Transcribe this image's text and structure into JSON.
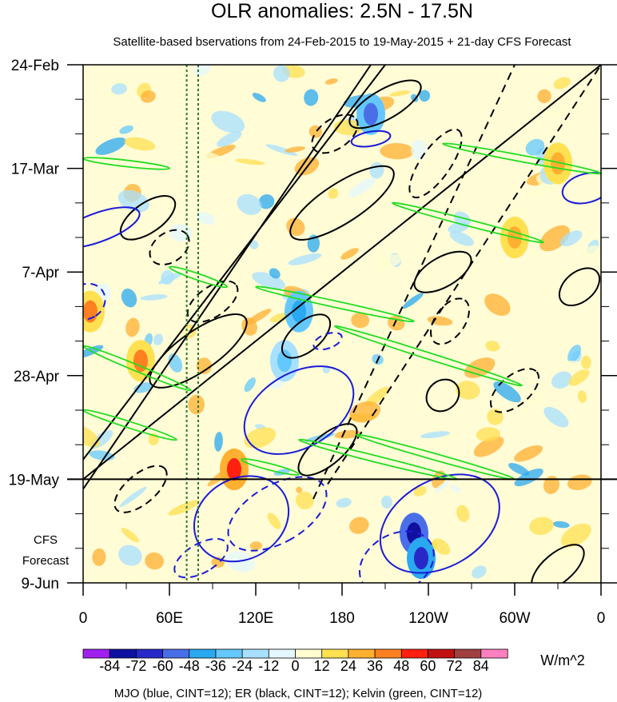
{
  "chart_data": {
    "type": "heatmap",
    "title": "OLR anomalies: 2.5N - 17.5N",
    "subtitle": "Satellite-based bservations from 24-Feb-2015 to 19-May-2015 + 21-day CFS Forecast",
    "y_ticks": [
      "24-Feb",
      "17-Mar",
      "7-Apr",
      "28-Apr",
      "19-May",
      "9-Jun"
    ],
    "y_tick_days": [
      0,
      21,
      42,
      63,
      84,
      105
    ],
    "forecast_start_day": 84,
    "forecast_label": [
      "CFS",
      "Forecast"
    ],
    "x_ticks": [
      "0",
      "60E",
      "120E",
      "180",
      "120W",
      "60W",
      "0"
    ],
    "x_tick_lon": [
      0,
      60,
      120,
      180,
      240,
      300,
      360
    ],
    "xlim": [
      0,
      360
    ],
    "ylim_days": [
      0,
      105
    ],
    "colorbar": {
      "label": "W/m^2",
      "tick_labels": [
        "-84",
        "-72",
        "-60",
        "-48",
        "-36",
        "-24",
        "-12",
        "0",
        "12",
        "24",
        "36",
        "48",
        "60",
        "72",
        "84"
      ],
      "levels": [
        -84,
        -72,
        -60,
        -48,
        -36,
        -24,
        -12,
        0,
        12,
        24,
        36,
        48,
        60,
        72,
        84
      ],
      "colors": [
        "#a020f0",
        "#1010a0",
        "#2828c8",
        "#4a6ee8",
        "#2aa8f0",
        "#64c8ff",
        "#a8e0ff",
        "#e4f8ff",
        "#fffdd0",
        "#ffe050",
        "#ffb030",
        "#ff8020",
        "#ff2010",
        "#c01010",
        "#a04040",
        "#ff80c0"
      ]
    },
    "reference_lon_lines": [
      72,
      80
    ],
    "contour_legend": "MJO (blue, CINT=12); ER (black, CINT=12); Kelvin (green, CINT=12)",
    "series_colors": {
      "MJO": "#1a1ad8",
      "ER": "#000000",
      "Kelvin": "#22dd22"
    },
    "anomaly_features": [
      {
        "lon": 200,
        "day": 10,
        "value": -60
      },
      {
        "lon": 230,
        "day": 95,
        "value": -84
      },
      {
        "lon": 235,
        "day": 100,
        "value": -72
      },
      {
        "lon": 150,
        "day": 50,
        "value": -48
      },
      {
        "lon": 105,
        "day": 82,
        "value": 48
      },
      {
        "lon": 40,
        "day": 60,
        "value": 36
      },
      {
        "lon": 300,
        "day": 35,
        "value": 24
      },
      {
        "lon": 5,
        "day": 50,
        "value": 36
      },
      {
        "lon": 140,
        "day": 60,
        "value": -36
      },
      {
        "lon": 330,
        "day": 20,
        "value": 24
      }
    ],
    "mjo_contours": [
      {
        "lon": 10,
        "day": 33,
        "dlon": 10,
        "dday": 9,
        "angle": 70,
        "style": "solid"
      },
      {
        "lon": 200,
        "day": 15,
        "dlon": 5,
        "dday": 4,
        "angle": 80,
        "style": "solid"
      },
      {
        "lon": 350,
        "day": 25,
        "dlon": 10,
        "dday": 5,
        "angle": 75,
        "style": "solid"
      },
      {
        "lon": 2,
        "day": 48,
        "dlon": 12,
        "dday": 4,
        "angle": 60,
        "style": "dashed"
      },
      {
        "lon": 170,
        "day": 56,
        "dlon": 5,
        "dday": 3,
        "angle": 70,
        "style": "dashed"
      },
      {
        "lon": 150,
        "day": 70,
        "dlon": 26,
        "dday": 12,
        "angle": 60,
        "style": "solid"
      },
      {
        "lon": 110,
        "day": 92,
        "dlon": 28,
        "dday": 10,
        "angle": 60,
        "style": "solid"
      },
      {
        "lon": 135,
        "day": 91,
        "dlon": 20,
        "dday": 11,
        "angle": 60,
        "style": "dashed"
      },
      {
        "lon": 248,
        "day": 93,
        "dlon": 30,
        "dday": 13,
        "angle": 60,
        "style": "solid"
      },
      {
        "lon": 218,
        "day": 101,
        "dlon": 20,
        "dday": 8,
        "angle": 60,
        "style": "dashed"
      },
      {
        "lon": 82,
        "day": 100,
        "dlon": 10,
        "dday": 6,
        "angle": 60,
        "style": "dashed"
      }
    ],
    "er_contours": [
      {
        "lon": 80,
        "day": 58,
        "dlon": 40,
        "dday": 4,
        "angle": -35,
        "style": "solid"
      },
      {
        "lon": 180,
        "day": 28,
        "dlon": 42,
        "dday": 4,
        "angle": -33,
        "style": "solid"
      },
      {
        "lon": 210,
        "day": 8,
        "dlon": 28,
        "dday": 3,
        "angle": -30,
        "style": "solid"
      },
      {
        "lon": 45,
        "day": 31,
        "dlon": 22,
        "dday": 3,
        "angle": -35,
        "style": "solid"
      },
      {
        "lon": 155,
        "day": 55,
        "dlon": 20,
        "dday": 3,
        "angle": -40,
        "style": "solid"
      },
      {
        "lon": 250,
        "day": 42,
        "dlon": 22,
        "dday": 3,
        "angle": -30,
        "style": "solid"
      },
      {
        "lon": 345,
        "day": 45,
        "dlon": 16,
        "dday": 3,
        "angle": -40,
        "style": "solid"
      },
      {
        "lon": 90,
        "day": 48,
        "dlon": 20,
        "dday": 3,
        "angle": -35,
        "style": "dashed"
      },
      {
        "lon": 60,
        "day": 37,
        "dlon": 15,
        "dday": 3,
        "angle": -35,
        "style": "dashed"
      },
      {
        "lon": 245,
        "day": 20,
        "dlon": 28,
        "dday": 3,
        "angle": -55,
        "style": "dashed"
      },
      {
        "lon": 255,
        "day": 52,
        "dlon": 18,
        "dday": 3,
        "angle": -55,
        "style": "dashed"
      },
      {
        "lon": 300,
        "day": 66,
        "dlon": 20,
        "dday": 3,
        "angle": -40,
        "style": "dashed"
      },
      {
        "lon": 250,
        "day": 67,
        "dlon": 12,
        "dday": 3,
        "angle": -40,
        "style": "solid"
      },
      {
        "lon": 170,
        "day": 78,
        "dlon": 25,
        "dday": 3,
        "angle": -40,
        "style": "solid"
      },
      {
        "lon": 40,
        "day": 86,
        "dlon": 22,
        "dday": 3,
        "angle": -40,
        "style": "dashed"
      },
      {
        "lon": 330,
        "day": 102,
        "dlon": 22,
        "dday": 3,
        "angle": -40,
        "style": "solid"
      },
      {
        "lon": 175,
        "day": 14,
        "dlon": 18,
        "dday": 3,
        "angle": -35,
        "style": "dashed"
      }
    ],
    "er_lines": [
      {
        "points": [
          [
            0,
            84
          ],
          [
            360,
            0
          ]
        ],
        "style": "solid"
      },
      {
        "points": [
          [
            0,
            86
          ],
          [
            200,
            0
          ]
        ],
        "style": "solid"
      },
      {
        "points": [
          [
            0,
            80
          ],
          [
            210,
            0
          ]
        ],
        "style": "solid"
      },
      {
        "points": [
          [
            170,
            85
          ],
          [
            360,
            0
          ]
        ],
        "style": "dashed"
      },
      {
        "points": [
          [
            160,
            88
          ],
          [
            300,
            0
          ]
        ],
        "style": "dashed"
      }
    ],
    "kelvin_contours": [
      {
        "points": [
          [
            0,
            57
          ],
          [
            75,
            66
          ]
        ]
      },
      {
        "points": [
          [
            0,
            70
          ],
          [
            65,
            76
          ]
        ]
      },
      {
        "points": [
          [
            175,
            53
          ],
          [
            305,
            65
          ]
        ]
      },
      {
        "points": [
          [
            190,
            75
          ],
          [
            300,
            84
          ]
        ]
      },
      {
        "points": [
          [
            150,
            76
          ],
          [
            260,
            84
          ]
        ]
      },
      {
        "points": [
          [
            215,
            28
          ],
          [
            320,
            36
          ]
        ]
      },
      {
        "points": [
          [
            250,
            16
          ],
          [
            360,
            22
          ]
        ]
      },
      {
        "points": [
          [
            120,
            45
          ],
          [
            230,
            52
          ]
        ]
      },
      {
        "points": [
          [
            0,
            19
          ],
          [
            60,
            21
          ]
        ]
      },
      {
        "points": [
          [
            60,
            41
          ],
          [
            100,
            45
          ]
        ]
      },
      {
        "points": [
          [
            110,
            80
          ],
          [
            150,
            83
          ]
        ]
      }
    ]
  }
}
